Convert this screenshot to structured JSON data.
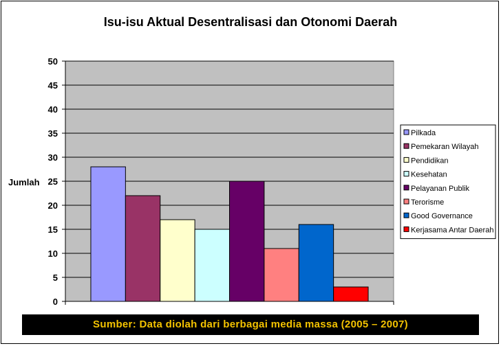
{
  "chart_data": {
    "type": "bar",
    "title": "Isu-isu Aktual Desentralisasi dan Otonomi Daerah",
    "ylabel": "Jumlah",
    "xlabel": "",
    "ylim": [
      0,
      50
    ],
    "yticks": [
      0,
      5,
      10,
      15,
      20,
      25,
      30,
      35,
      40,
      45,
      50
    ],
    "grid": true,
    "legend_position": "right",
    "series": [
      {
        "name": "Pilkada",
        "value": 28,
        "color": "#9999ff"
      },
      {
        "name": "Pemekaran Wilayah",
        "value": 22,
        "color": "#993366"
      },
      {
        "name": "Pendidikan",
        "value": 17,
        "color": "#ffffcc"
      },
      {
        "name": "Kesehatan",
        "value": 15,
        "color": "#ccffff"
      },
      {
        "name": "Pelayanan Publik",
        "value": 25,
        "color": "#660066"
      },
      {
        "name": "Terorisme",
        "value": 11,
        "color": "#ff8080"
      },
      {
        "name": "Good Governance",
        "value": 16,
        "color": "#0066cc"
      },
      {
        "name": "Kerjasama Antar Daerah",
        "value": 3,
        "color": "#ff0000"
      }
    ],
    "plot_background": "#c0c0c0"
  },
  "source_note": "Sumber: Data diolah dari berbagai media massa (2005 – 2007)"
}
